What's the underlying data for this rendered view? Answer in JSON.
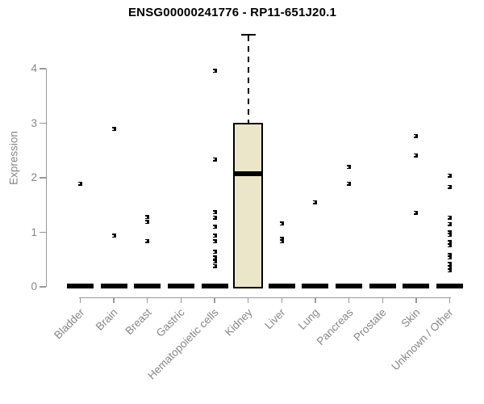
{
  "chart_data": {
    "type": "box",
    "title": "ENSG00000241776 - RP11-651J20.1",
    "ylabel": "Expression",
    "xlabel": "",
    "ylim": [
      0,
      4.7
    ],
    "yticks": [
      0,
      1,
      2,
      3,
      4
    ],
    "grid": false,
    "legend": null,
    "categories": [
      "Bladder",
      "Brain",
      "Breast",
      "Gastric",
      "Hematopoietic cells",
      "Kidney",
      "Liver",
      "Lung",
      "Pancreas",
      "Prostate",
      "Skin",
      "Unknown / Other"
    ],
    "boxes": [
      {
        "category": "Bladder",
        "q1": 0,
        "median": 0,
        "q3": 0,
        "whisker_low": 0,
        "whisker_high": 0,
        "outliers": [
          1.89
        ]
      },
      {
        "category": "Brain",
        "q1": 0,
        "median": 0,
        "q3": 0,
        "whisker_low": 0,
        "whisker_high": 0,
        "outliers": [
          2.89,
          0.94
        ]
      },
      {
        "category": "Breast",
        "q1": 0,
        "median": 0,
        "q3": 0,
        "whisker_low": 0,
        "whisker_high": 0,
        "outliers": [
          1.28,
          1.19,
          0.84
        ]
      },
      {
        "category": "Gastric",
        "q1": 0,
        "median": 0,
        "q3": 0,
        "whisker_low": 0,
        "whisker_high": 0,
        "outliers": []
      },
      {
        "category": "Hematopoietic cells",
        "q1": 0,
        "median": 0,
        "q3": 0,
        "whisker_low": 0,
        "whisker_high": 0,
        "outliers": [
          3.96,
          2.34,
          1.37,
          1.27,
          1.1,
          0.94,
          0.83,
          0.64,
          0.54,
          0.46,
          0.38
        ]
      },
      {
        "category": "Kidney",
        "q1": 0,
        "median": 2.08,
        "q3": 2.98,
        "whisker_low": 0,
        "whisker_high": 4.62,
        "outliers": []
      },
      {
        "category": "Liver",
        "q1": 0,
        "median": 0,
        "q3": 0,
        "whisker_low": 0,
        "whisker_high": 0,
        "outliers": [
          1.16,
          0.88,
          0.83
        ]
      },
      {
        "category": "Lung",
        "q1": 0,
        "median": 0,
        "q3": 0,
        "whisker_low": 0,
        "whisker_high": 0,
        "outliers": [
          1.55
        ]
      },
      {
        "category": "Pancreas",
        "q1": 0,
        "median": 0,
        "q3": 0,
        "whisker_low": 0,
        "whisker_high": 0,
        "outliers": [
          2.2,
          1.89
        ]
      },
      {
        "category": "Prostate",
        "q1": 0,
        "median": 0,
        "q3": 0,
        "whisker_low": 0,
        "whisker_high": 0,
        "outliers": []
      },
      {
        "category": "Skin",
        "q1": 0,
        "median": 0,
        "q3": 0,
        "whisker_low": 0,
        "whisker_high": 0,
        "outliers": [
          2.77,
          2.41,
          1.36
        ]
      },
      {
        "category": "Unknown / Other",
        "q1": 0,
        "median": 0,
        "q3": 0,
        "whisker_low": 0,
        "whisker_high": 0,
        "outliers": [
          2.04,
          1.83,
          1.27,
          1.15,
          1.0,
          0.95,
          0.82,
          0.76,
          0.58,
          0.54,
          0.42,
          0.36,
          0.3
        ]
      }
    ],
    "colors": {
      "box_fill": "#ebe6ca",
      "box_border": "#000000",
      "median": "#000000",
      "marker": "#000000",
      "axis_line": "#999999",
      "tick_label": "#878787",
      "title": "#000000",
      "background": "#ffffff"
    }
  }
}
